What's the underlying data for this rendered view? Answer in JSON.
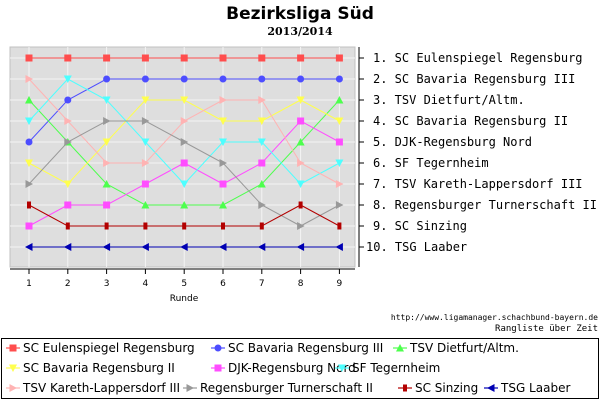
{
  "header": {
    "title": "Bezirksliga Süd",
    "subtitle": "2013/2014"
  },
  "footer": {
    "credit": "http://www.ligamanager.schachbund-bayern.de",
    "caption": "Rangliste über Zeit"
  },
  "chart_data": {
    "type": "line",
    "title": "Bezirksliga Süd",
    "subtitle": "2013/2014",
    "xlabel": "Runde",
    "ylabel": "",
    "x": [
      1,
      2,
      3,
      4,
      5,
      6,
      7,
      8,
      9
    ],
    "ylim": [
      10,
      1
    ],
    "grid": true,
    "legend_position": "bottom",
    "final_ranking": [
      "1. SC Eulenspiegel Regensburg",
      "2. SC Bavaria Regensburg III",
      "3. TSV Dietfurt/Altm.",
      "4. SC Bavaria Regensburg II",
      "5. DJK-Regensburg Nord",
      "6. SF Tegernheim",
      "7. TSV Kareth-Lappersdorf III",
      "8. Regensburger Turnerschaft II",
      "9. SC Sinzing",
      "10. TSG Laaber"
    ],
    "series": [
      {
        "name": "SC Eulenspiegel Regensburg",
        "color": "#ff4d4d",
        "marker": "square",
        "values": [
          1,
          1,
          1,
          1,
          1,
          1,
          1,
          1,
          1
        ]
      },
      {
        "name": "SC Bavaria Regensburg III",
        "color": "#4d4dff",
        "marker": "circle",
        "values": [
          5,
          3,
          2,
          2,
          2,
          2,
          2,
          2,
          2
        ]
      },
      {
        "name": "TSV Dietfurt/Altm.",
        "color": "#4dff4d",
        "marker": "triangle-up",
        "values": [
          3,
          5,
          7,
          8,
          8,
          8,
          7,
          5,
          3
        ]
      },
      {
        "name": "SC Bavaria Regensburg II",
        "color": "#ffff4d",
        "marker": "triangle-down",
        "values": [
          6,
          7,
          5,
          3,
          3,
          4,
          4,
          3,
          4
        ]
      },
      {
        "name": "DJK-Regensburg Nord",
        "color": "#ff4dff",
        "marker": "square",
        "values": [
          9,
          8,
          8,
          7,
          6,
          7,
          6,
          4,
          5
        ]
      },
      {
        "name": "SF Tegernheim",
        "color": "#4dffff",
        "marker": "triangle-down",
        "values": [
          4,
          2,
          3,
          5,
          7,
          5,
          5,
          7,
          6
        ]
      },
      {
        "name": "TSV Kareth-Lappersdorf III",
        "color": "#ffb3b3",
        "marker": "triangle-right",
        "values": [
          2,
          4,
          6,
          6,
          4,
          3,
          3,
          6,
          7
        ]
      },
      {
        "name": "Regensburger Turnerschaft II",
        "color": "#999999",
        "marker": "triangle-right",
        "values": [
          7,
          5,
          4,
          4,
          5,
          6,
          8,
          9,
          8
        ]
      },
      {
        "name": "SC Sinzing",
        "color": "#b30000",
        "marker": "dash",
        "values": [
          8,
          9,
          9,
          9,
          9,
          9,
          9,
          8,
          9
        ]
      },
      {
        "name": "TSG Laaber",
        "color": "#0000b3",
        "marker": "triangle-left",
        "values": [
          10,
          10,
          10,
          10,
          10,
          10,
          10,
          10,
          10
        ]
      }
    ]
  }
}
